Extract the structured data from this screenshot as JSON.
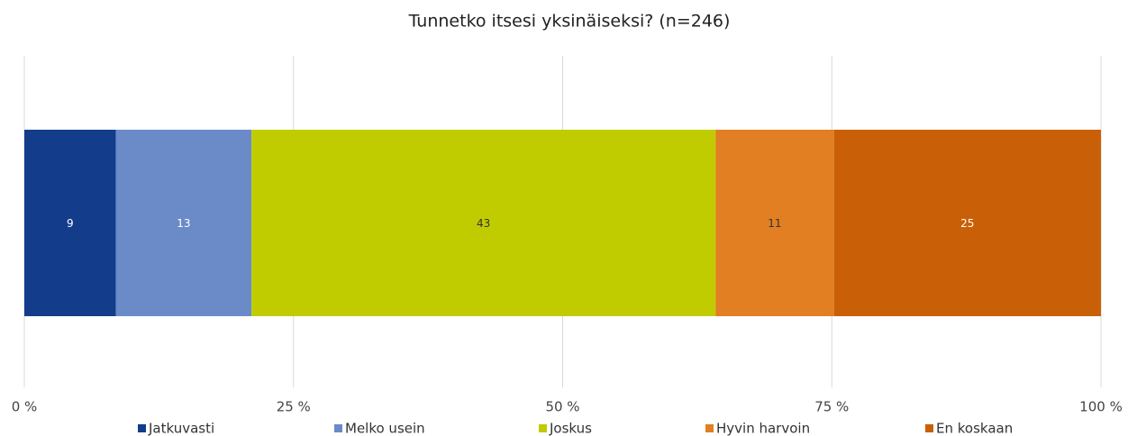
{
  "chart_data": {
    "type": "stacked-bar-horizontal",
    "title": "Tunnetko itsesi yksinäiseksi? (n=246)",
    "categories": [
      null
    ],
    "series": [
      {
        "name": "Jatkuvasti",
        "color": "#133d8b",
        "values": [
          8.5
        ],
        "value_labels": [
          "9"
        ]
      },
      {
        "name": "Melko usein",
        "color": "#6a8bc7",
        "values": [
          12.6
        ],
        "value_labels": [
          "13"
        ]
      },
      {
        "name": "Joskus",
        "color": "#c0cc00",
        "values": [
          43.1
        ],
        "value_labels": [
          "43"
        ]
      },
      {
        "name": "Hyvin harvoin",
        "color": "#e27f22",
        "values": [
          11.0
        ],
        "value_labels": [
          "11"
        ]
      },
      {
        "name": "En koskaan",
        "color": "#c96007",
        "values": [
          24.8
        ],
        "value_labels": [
          "25"
        ]
      }
    ],
    "xlim": [
      0,
      100
    ],
    "xticks": [
      {
        "value": 0,
        "label": "0 %"
      },
      {
        "value": 25,
        "label": "25 %"
      },
      {
        "value": 50,
        "label": "50 %"
      },
      {
        "value": 75,
        "label": "75 %"
      },
      {
        "value": 100,
        "label": "100 %"
      }
    ],
    "grid": true,
    "legend": "bottom"
  }
}
